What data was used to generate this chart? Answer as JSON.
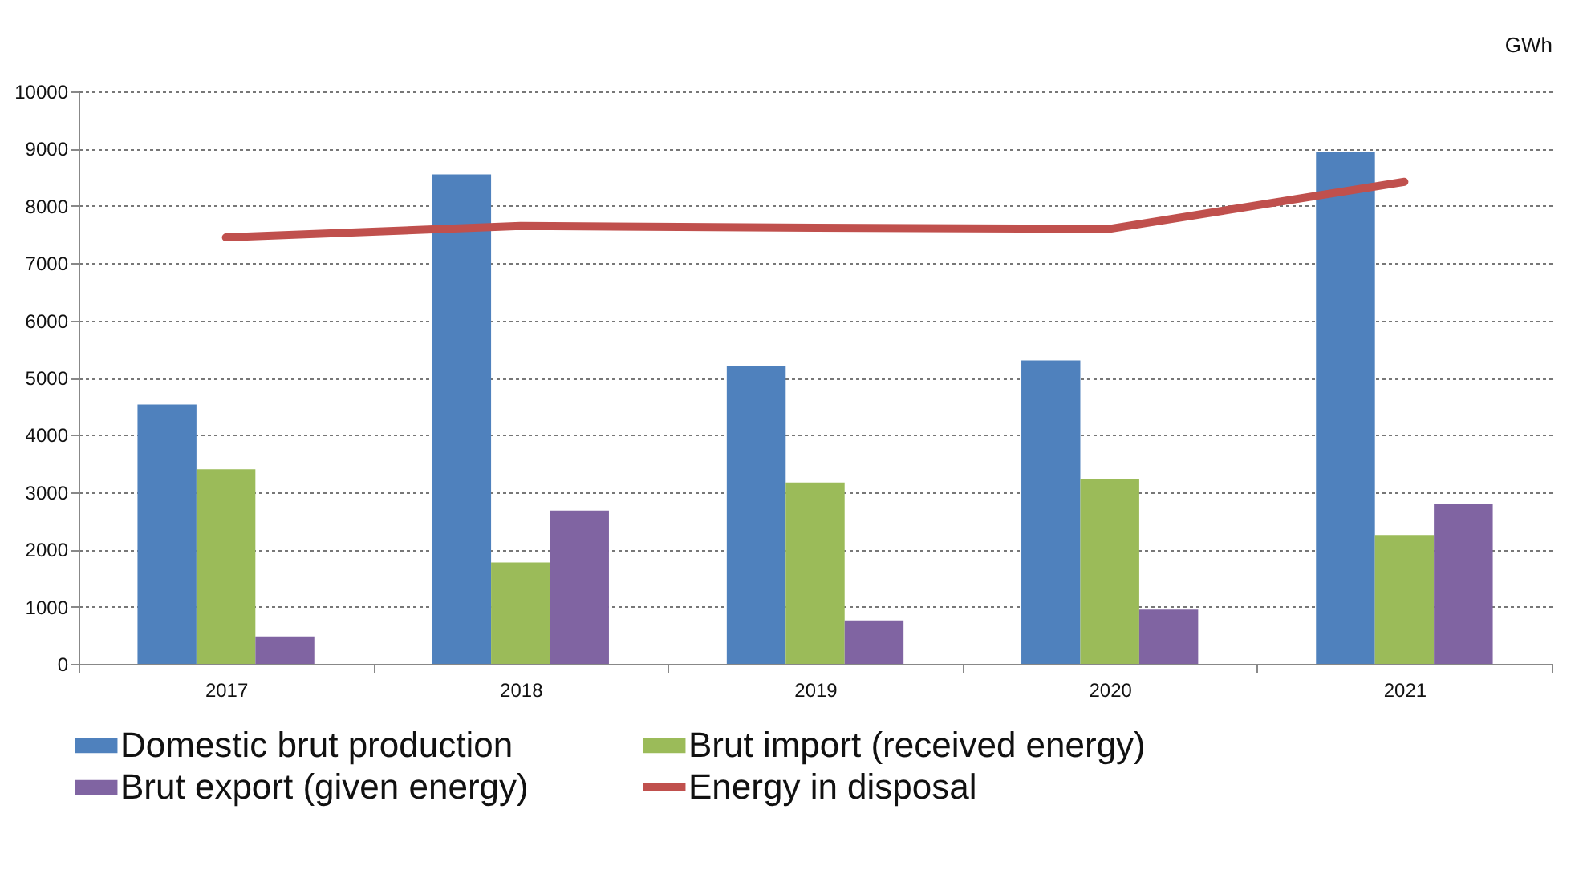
{
  "chart_data": {
    "type": "bar",
    "ylabel": "GWh",
    "categories": [
      "2017",
      "2018",
      "2019",
      "2020",
      "2021"
    ],
    "series": [
      {
        "name": "Domestic brut production",
        "color": "#4f81bd",
        "values": [
          4530,
          8550,
          5200,
          5300,
          8950
        ]
      },
      {
        "name": "Brut import (received energy)",
        "color": "#9bbb59",
        "values": [
          3400,
          1770,
          3170,
          3230,
          2250
        ]
      },
      {
        "name": "Brut export (given energy)",
        "color": "#8064a2",
        "values": [
          480,
          2680,
          760,
          950,
          2790
        ]
      },
      {
        "name": "Energy in disposal",
        "color": "#c0504d",
        "type": "line",
        "values": [
          7450,
          7650,
          7620,
          7600,
          8420
        ]
      }
    ],
    "ylim": [
      0,
      10000
    ],
    "yticks": [
      0,
      1000,
      2000,
      3000,
      4000,
      5000,
      6000,
      7000,
      8000,
      9000,
      10000
    ],
    "grid": "y",
    "legend": "bottom",
    "marker": "none"
  }
}
